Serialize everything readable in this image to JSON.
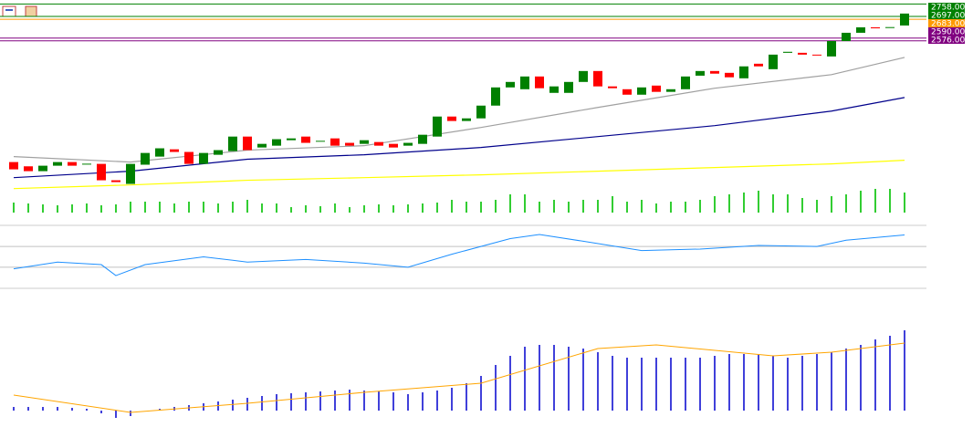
{
  "chart_data": [
    {
      "type": "candlestick",
      "ylim": [
        1840,
        2778
      ],
      "up_color": "#008000",
      "down_color": "#ff0000",
      "open": [
        1977,
        1956,
        1932,
        1959,
        1977,
        1968,
        1968,
        1887,
        1869,
        1964,
        2004,
        2040,
        2027,
        1968,
        2013,
        2031,
        2103,
        2049,
        2058,
        2085,
        2103,
        2081,
        2094,
        2072,
        2067,
        2076,
        2067,
        2058,
        2067,
        2103,
        2202,
        2180,
        2193,
        2256,
        2346,
        2337,
        2400,
        2319,
        2319,
        2373,
        2427,
        2351,
        2337,
        2310,
        2355,
        2324,
        2337,
        2404,
        2427,
        2418,
        2391,
        2463,
        2436,
        2517,
        2517,
        2508,
        2499,
        2575,
        2616,
        2643,
        2643,
        2652
      ],
      "close": [
        1941,
        1932,
        1959,
        1977,
        1959,
        1969,
        1887,
        1878,
        1968,
        2022,
        2045,
        2027,
        1968,
        2022,
        2036,
        2103,
        2036,
        2067,
        2090,
        2094,
        2072,
        2082,
        2058,
        2058,
        2085,
        2058,
        2049,
        2072,
        2112,
        2202,
        2180,
        2193,
        2256,
        2346,
        2373,
        2400,
        2342,
        2351,
        2373,
        2427,
        2351,
        2342,
        2310,
        2346,
        2324,
        2337,
        2400,
        2427,
        2414,
        2396,
        2450,
        2450,
        2508,
        2522,
        2508,
        2504,
        2575,
        2616,
        2643,
        2638,
        2644,
        2711
      ],
      "ma_x": [
        1,
        9,
        17,
        25,
        33,
        41,
        49,
        57,
        62
      ],
      "ma": [
        {
          "color": "#a0a0a0",
          "values": [
            2004,
            1977,
            2036,
            2058,
            2148,
            2247,
            2342,
            2409,
            2494
          ]
        },
        {
          "color": "#00008b",
          "values": [
            1900,
            1932,
            1991,
            2013,
            2049,
            2103,
            2157,
            2229,
            2296
          ]
        },
        {
          "color": "#ffff00",
          "values": [
            1846,
            1864,
            1887,
            1900,
            1914,
            1932,
            1950,
            1968,
            1986
          ]
        }
      ],
      "levels": [
        {
          "value": 2758,
          "label": "2758.00",
          "color": "#008000"
        },
        {
          "value": 2697,
          "label": "2697.00",
          "color": "#008000"
        },
        {
          "value": 2683,
          "label": "2683.00",
          "color": "#ff9900"
        },
        {
          "value": 2590,
          "label": "2590.00",
          "color": "#800080"
        },
        {
          "value": 2576,
          "label": "2576.00",
          "color": "#800080"
        }
      ]
    },
    {
      "type": "bar",
      "color": "#32cd32",
      "ylim": [
        0,
        30
      ],
      "values": [
        11,
        10,
        9,
        8,
        9,
        10,
        8,
        9,
        12,
        12,
        12,
        10,
        12,
        12,
        10,
        12,
        14,
        10,
        10,
        6,
        8,
        7,
        10,
        6,
        8,
        9,
        8,
        9,
        10,
        11,
        14,
        12,
        12,
        14,
        20,
        20,
        12,
        14,
        12,
        14,
        14,
        18,
        12,
        14,
        10,
        12,
        12,
        14,
        18,
        20,
        22,
        24,
        20,
        20,
        16,
        14,
        18,
        20,
        24,
        26,
        26,
        22
      ]
    },
    {
      "type": "line",
      "color": "#1e90ff",
      "ylim": [
        0,
        100
      ],
      "levels": [
        70,
        30
      ],
      "x": [
        1,
        4,
        7,
        8,
        10,
        14,
        17,
        21,
        25,
        28,
        31,
        35,
        37,
        40,
        44,
        48,
        52,
        56,
        58,
        62
      ],
      "values": [
        27,
        40,
        35,
        14,
        35,
        50,
        40,
        45,
        38,
        30,
        55,
        85,
        93,
        80,
        62,
        65,
        72,
        70,
        82,
        92
      ]
    },
    {
      "type": "histogram-signal",
      "color": "#0000cd",
      "signal_color": "#ffa500",
      "ylim": [
        -10,
        100
      ],
      "values": [
        4,
        4,
        4,
        4,
        3,
        2,
        -3,
        -8,
        -6,
        0,
        2,
        4,
        6,
        8,
        10,
        12,
        14,
        16,
        18,
        19,
        20,
        21,
        22,
        23,
        22,
        21,
        20,
        18,
        20,
        22,
        25,
        30,
        38,
        50,
        60,
        70,
        72,
        72,
        70,
        68,
        64,
        60,
        58,
        58,
        58,
        58,
        58,
        58,
        60,
        62,
        62,
        62,
        60,
        58,
        60,
        62,
        64,
        68,
        72,
        78,
        82,
        88
      ],
      "signal_x": [
        1,
        9,
        17,
        25,
        33,
        41,
        45,
        53,
        57,
        62
      ],
      "signal": [
        17,
        -2,
        8,
        20,
        30,
        68,
        72,
        60,
        64,
        74
      ]
    }
  ]
}
